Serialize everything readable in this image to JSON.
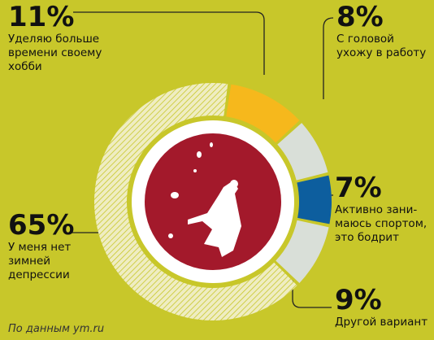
{
  "chart_data": {
    "type": "pie",
    "values": [
      11,
      8,
      7,
      9,
      65
    ],
    "value_labels": [
      "11%",
      "8%",
      "7%",
      "9%",
      "65%"
    ],
    "labels": [
      [
        "Уделяю больше",
        "времени своему",
        "хобби"
      ],
      [
        "С головой",
        "ухожу в работу"
      ],
      [
        "Активно зани-",
        "маюсь спортом,",
        "это бодрит"
      ],
      [
        "Другой вариант"
      ],
      [
        "У меня нет",
        "зимней",
        "депрессии"
      ]
    ],
    "colors": [
      "#f6b81c",
      "#d9dfd8",
      "#0d5e9e",
      "#d9dfd8",
      "#efedc2"
    ],
    "patterns": [
      null,
      null,
      null,
      null,
      "hatch"
    ],
    "note": "По данным ym.ru"
  }
}
